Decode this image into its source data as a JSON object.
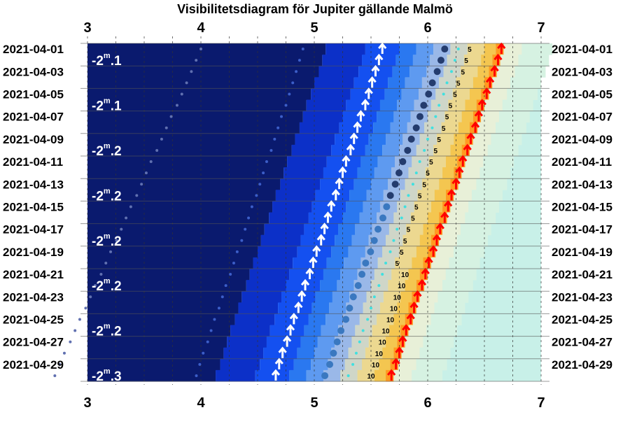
{
  "title": "Visibilitetsdiagram för Jupiter gällande Malmö",
  "chart_data": {
    "type": "visibility-diagram",
    "x_range": [
      3,
      7
    ],
    "x_ticks": [
      "3",
      "4",
      "5",
      "6",
      "7"
    ],
    "dates": [
      "2021-04-01",
      "2021-04-02",
      "2021-04-03",
      "2021-04-04",
      "2021-04-05",
      "2021-04-06",
      "2021-04-07",
      "2021-04-08",
      "2021-04-09",
      "2021-04-10",
      "2021-04-11",
      "2021-04-12",
      "2021-04-13",
      "2021-04-14",
      "2021-04-15",
      "2021-04-16",
      "2021-04-17",
      "2021-04-18",
      "2021-04-19",
      "2021-04-20",
      "2021-04-21",
      "2021-04-22",
      "2021-04-23",
      "2021-04-24",
      "2021-04-25",
      "2021-04-26",
      "2021-04-27",
      "2021-04-28",
      "2021-04-29",
      "2021-04-30"
    ],
    "date_labels": [
      "2021-04-01",
      "2021-04-03",
      "2021-04-05",
      "2021-04-07",
      "2021-04-09",
      "2021-04-11",
      "2021-04-13",
      "2021-04-15",
      "2021-04-17",
      "2021-04-19",
      "2021-04-21",
      "2021-04-23",
      "2021-04-25",
      "2021-04-27",
      "2021-04-29"
    ],
    "planet_rise": [
      5.6,
      5.57,
      5.54,
      5.51,
      5.48,
      5.45,
      5.41,
      5.38,
      5.35,
      5.32,
      5.28,
      5.25,
      5.22,
      5.19,
      5.15,
      5.12,
      5.09,
      5.06,
      5.02,
      4.99,
      4.96,
      4.92,
      4.89,
      4.86,
      4.82,
      4.79,
      4.76,
      4.72,
      4.69,
      4.66
    ],
    "sunrise": [
      6.65,
      6.62,
      6.59,
      6.55,
      6.52,
      6.48,
      6.45,
      6.42,
      6.38,
      6.35,
      6.31,
      6.28,
      6.25,
      6.21,
      6.18,
      6.15,
      6.11,
      6.08,
      6.05,
      6.01,
      5.98,
      5.95,
      5.91,
      5.88,
      5.85,
      5.81,
      5.78,
      5.75,
      5.72,
      5.68
    ],
    "magnitude_labels": [
      {
        "date": "2021-04-02",
        "text": "-2",
        "sup": "m",
        "dec": ".1"
      },
      {
        "date": "2021-04-06",
        "text": "-2",
        "sup": "m",
        "dec": ".1"
      },
      {
        "date": "2021-04-10",
        "text": "-2",
        "sup": "m",
        "dec": ".2"
      },
      {
        "date": "2021-04-14",
        "text": "-2",
        "sup": "m",
        "dec": ".2"
      },
      {
        "date": "2021-04-18",
        "text": "-2",
        "sup": "m",
        "dec": ".2"
      },
      {
        "date": "2021-04-22",
        "text": "-2",
        "sup": "m",
        "dec": ".2"
      },
      {
        "date": "2021-04-26",
        "text": "-2",
        "sup": "m",
        "dec": ".2"
      },
      {
        "date": "2021-04-30",
        "text": "-2",
        "sup": "m",
        "dec": ".3"
      }
    ],
    "limit_marks": [
      "5",
      "5",
      "5",
      "5",
      "5",
      "5",
      "5",
      "5",
      "5",
      "5",
      "5",
      "5",
      "5",
      "5",
      "5",
      "5",
      "5",
      "5",
      "5",
      "5",
      "10",
      "10",
      "10",
      "10",
      "10",
      "10",
      "10",
      "10",
      "10",
      "10"
    ],
    "limit_positions": [
      6.35,
      6.25,
      6.23,
      6.13,
      6.1,
      6.03,
      5.99,
      5.91,
      5.87,
      5.84,
      5.75,
      5.71,
      5.64,
      5.59,
      5.54,
      5.49,
      5.41,
      5.36,
      5.3,
      5.25,
      5.86,
      5.76,
      5.74,
      5.58,
      5.56,
      5.5,
      5.45,
      5.42,
      5.37,
      5.3
    ],
    "colors": {
      "night": "#0a1a6e",
      "twilight_blue": "#1450f0",
      "dawn_yellow": "#f0c850",
      "dawn_orange": "#ffa030",
      "day": "#c8f0e8",
      "rise_arrow": "#ffffff",
      "sunrise_arrow": "#ff0000",
      "planet_dot": "#4a6aa0"
    }
  }
}
